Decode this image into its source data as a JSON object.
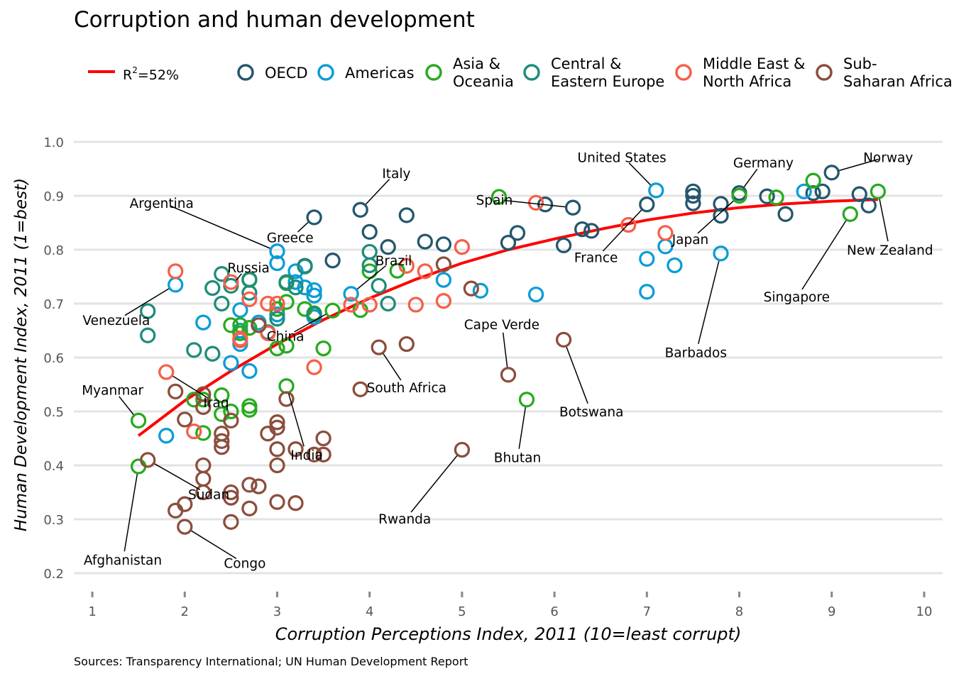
{
  "chart_data": {
    "type": "scatter",
    "title": "Corruption and human development",
    "xlabel": "Corruption Perceptions Index, 2011 (10=least corrupt)",
    "ylabel": "Human Development Index, 2011 (1=best)",
    "source": "Sources: Transparency International; UN Human Development Report",
    "xlim": [
      0.8,
      10.2
    ],
    "ylim": [
      0.2,
      1.0
    ],
    "x_ticks": [
      1,
      2,
      3,
      4,
      5,
      6,
      7,
      8,
      9,
      10
    ],
    "y_ticks": [
      "0.2",
      "0.3",
      "0.4",
      "0.5",
      "0.6",
      "0.7",
      "0.8",
      "0.9",
      "1.0"
    ],
    "grid": "horizontal",
    "legend_position": "top",
    "trend": {
      "label_prefix": "R",
      "label_sup": "2",
      "label_suffix": "=52%",
      "color": "#ff0000",
      "points": [
        [
          1.5,
          0.455
        ],
        [
          2,
          0.52
        ],
        [
          2.5,
          0.575
        ],
        [
          3,
          0.625
        ],
        [
          3.5,
          0.67
        ],
        [
          4,
          0.71
        ],
        [
          4.5,
          0.745
        ],
        [
          5,
          0.775
        ],
        [
          5.5,
          0.8
        ],
        [
          6,
          0.82
        ],
        [
          6.5,
          0.838
        ],
        [
          7,
          0.855
        ],
        [
          7.5,
          0.868
        ],
        [
          8,
          0.878
        ],
        [
          8.5,
          0.885
        ],
        [
          9,
          0.89
        ],
        [
          9.5,
          0.893
        ]
      ]
    },
    "series": [
      {
        "name": "OECD",
        "color": "#24576d",
        "points": [
          [
            3.4,
            0.86
          ],
          [
            3.3,
            0.77
          ],
          [
            3.6,
            0.78
          ],
          [
            3.9,
            0.874
          ],
          [
            4.0,
            0.833
          ],
          [
            4.2,
            0.805
          ],
          [
            4.4,
            0.864
          ],
          [
            4.6,
            0.815
          ],
          [
            4.8,
            0.81
          ],
          [
            5.5,
            0.813
          ],
          [
            5.6,
            0.831
          ],
          [
            5.9,
            0.884
          ],
          [
            6.1,
            0.808
          ],
          [
            6.2,
            0.878
          ],
          [
            6.3,
            0.838
          ],
          [
            6.4,
            0.835
          ],
          [
            7.0,
            0.884
          ],
          [
            7.5,
            0.9
          ],
          [
            7.5,
            0.886
          ],
          [
            7.8,
            0.885
          ],
          [
            7.8,
            0.863
          ],
          [
            8.0,
            0.905
          ],
          [
            8.3,
            0.899
          ],
          [
            8.5,
            0.866
          ],
          [
            8.8,
            0.905
          ],
          [
            8.9,
            0.908
          ],
          [
            9.0,
            0.943
          ],
          [
            9.3,
            0.903
          ],
          [
            9.4,
            0.882
          ],
          [
            7.5,
            0.908
          ]
        ]
      },
      {
        "name": "Americas",
        "color": "#099dd7",
        "points": [
          [
            1.9,
            0.735
          ],
          [
            2.2,
            0.665
          ],
          [
            2.5,
            0.59
          ],
          [
            2.6,
            0.688
          ],
          [
            2.6,
            0.625
          ],
          [
            2.7,
            0.575
          ],
          [
            2.8,
            0.665
          ],
          [
            3.0,
            0.797
          ],
          [
            3.0,
            0.775
          ],
          [
            3.0,
            0.68
          ],
          [
            3.2,
            0.76
          ],
          [
            3.2,
            0.74
          ],
          [
            3.3,
            0.73
          ],
          [
            3.4,
            0.715
          ],
          [
            3.4,
            0.725
          ],
          [
            3.4,
            0.675
          ],
          [
            2.6,
            0.65
          ],
          [
            1.8,
            0.455
          ],
          [
            3.8,
            0.718
          ],
          [
            4.8,
            0.744
          ],
          [
            5.2,
            0.724
          ],
          [
            5.8,
            0.717
          ],
          [
            7.0,
            0.783
          ],
          [
            7.0,
            0.722
          ],
          [
            7.1,
            0.91
          ],
          [
            7.2,
            0.806
          ],
          [
            7.3,
            0.771
          ],
          [
            7.8,
            0.793
          ],
          [
            8.7,
            0.908
          ]
        ]
      },
      {
        "name": "Asia & Oceania",
        "color": "#28aa1f",
        "points": [
          [
            1.5,
            0.483
          ],
          [
            1.5,
            0.398
          ],
          [
            2.1,
            0.522
          ],
          [
            2.2,
            0.522
          ],
          [
            2.2,
            0.46
          ],
          [
            2.4,
            0.495
          ],
          [
            2.4,
            0.53
          ],
          [
            2.5,
            0.66
          ],
          [
            2.5,
            0.5
          ],
          [
            2.6,
            0.645
          ],
          [
            2.7,
            0.51
          ],
          [
            2.7,
            0.503
          ],
          [
            2.7,
            0.655
          ],
          [
            2.7,
            0.744
          ],
          [
            3.0,
            0.617
          ],
          [
            3.1,
            0.738
          ],
          [
            3.1,
            0.703
          ],
          [
            3.1,
            0.622
          ],
          [
            3.1,
            0.547
          ],
          [
            3.3,
            0.69
          ],
          [
            3.4,
            0.682
          ],
          [
            3.5,
            0.617
          ],
          [
            3.6,
            0.687
          ],
          [
            3.9,
            0.688
          ],
          [
            4.0,
            0.76
          ],
          [
            4.3,
            0.761
          ],
          [
            5.4,
            0.898
          ],
          [
            5.7,
            0.522
          ],
          [
            8.0,
            0.9
          ],
          [
            8.4,
            0.897
          ],
          [
            8.8,
            0.928
          ],
          [
            9.2,
            0.866
          ],
          [
            9.5,
            0.908
          ],
          [
            2.6,
            0.66
          ],
          [
            3.0,
            0.69
          ]
        ]
      },
      {
        "name": "Central & Eastern Europe",
        "color": "#1f8c7b",
        "points": [
          [
            1.6,
            0.686
          ],
          [
            1.6,
            0.641
          ],
          [
            2.1,
            0.614
          ],
          [
            2.3,
            0.607
          ],
          [
            2.3,
            0.729
          ],
          [
            2.4,
            0.755
          ],
          [
            2.4,
            0.7
          ],
          [
            2.5,
            0.733
          ],
          [
            2.7,
            0.745
          ],
          [
            2.7,
            0.72
          ],
          [
            2.9,
            0.647
          ],
          [
            3.0,
            0.672
          ],
          [
            3.1,
            0.74
          ],
          [
            3.2,
            0.73
          ],
          [
            3.3,
            0.769
          ],
          [
            4.0,
            0.796
          ],
          [
            4.0,
            0.771
          ],
          [
            4.1,
            0.733
          ],
          [
            4.2,
            0.7
          ],
          [
            3.4,
            0.68
          ]
        ]
      },
      {
        "name": "Middle East & North Africa",
        "color": "#f65f4a",
        "points": [
          [
            1.8,
            0.573
          ],
          [
            1.9,
            0.76
          ],
          [
            2.1,
            0.463
          ],
          [
            2.5,
            0.74
          ],
          [
            2.6,
            0.635
          ],
          [
            2.6,
            0.632
          ],
          [
            2.7,
            0.708
          ],
          [
            2.9,
            0.7
          ],
          [
            2.9,
            0.645
          ],
          [
            3.4,
            0.582
          ],
          [
            3.8,
            0.698
          ],
          [
            4.0,
            0.698
          ],
          [
            4.4,
            0.77
          ],
          [
            4.5,
            0.698
          ],
          [
            4.6,
            0.76
          ],
          [
            4.8,
            0.705
          ],
          [
            5.0,
            0.805
          ],
          [
            5.8,
            0.887
          ],
          [
            6.8,
            0.846
          ],
          [
            7.2,
            0.831
          ],
          [
            3.0,
            0.7
          ]
        ]
      },
      {
        "name": "Sub-Saharan Africa",
        "color": "#8b4e3d",
        "points": [
          [
            1.6,
            0.41
          ],
          [
            1.9,
            0.537
          ],
          [
            2.0,
            0.485
          ],
          [
            1.9,
            0.316
          ],
          [
            2.0,
            0.328
          ],
          [
            2.0,
            0.286
          ],
          [
            2.2,
            0.35
          ],
          [
            2.2,
            0.4
          ],
          [
            2.2,
            0.375
          ],
          [
            2.2,
            0.508
          ],
          [
            2.2,
            0.532
          ],
          [
            2.4,
            0.459
          ],
          [
            2.4,
            0.445
          ],
          [
            2.4,
            0.434
          ],
          [
            2.5,
            0.35
          ],
          [
            2.5,
            0.34
          ],
          [
            2.5,
            0.295
          ],
          [
            2.5,
            0.483
          ],
          [
            2.7,
            0.32
          ],
          [
            2.7,
            0.364
          ],
          [
            2.8,
            0.361
          ],
          [
            2.9,
            0.459
          ],
          [
            3.0,
            0.48
          ],
          [
            3.0,
            0.47
          ],
          [
            3.0,
            0.43
          ],
          [
            3.0,
            0.4
          ],
          [
            3.0,
            0.332
          ],
          [
            3.1,
            0.523
          ],
          [
            3.2,
            0.43
          ],
          [
            3.2,
            0.33
          ],
          [
            3.4,
            0.42
          ],
          [
            3.5,
            0.45
          ],
          [
            3.5,
            0.42
          ],
          [
            3.9,
            0.541
          ],
          [
            4.1,
            0.619
          ],
          [
            4.4,
            0.625
          ],
          [
            4.8,
            0.773
          ],
          [
            5.0,
            0.429
          ],
          [
            5.1,
            0.728
          ],
          [
            5.5,
            0.568
          ],
          [
            6.1,
            0.633
          ],
          [
            2.8,
            0.66
          ]
        ]
      }
    ],
    "annotations": [
      {
        "label": "Argentina",
        "x": 3.0,
        "y": 0.797,
        "text_x": 1.75,
        "text_y": 0.887
      },
      {
        "label": "Greece",
        "x": 3.4,
        "y": 0.86,
        "text_x": 3.14,
        "text_y": 0.823
      },
      {
        "label": "Italy",
        "x": 3.9,
        "y": 0.874,
        "text_x": 4.29,
        "text_y": 0.942
      },
      {
        "label": "Russia",
        "x": 2.5,
        "y": 0.733,
        "text_x": 2.69,
        "text_y": 0.767
      },
      {
        "label": "Brazil",
        "x": 3.8,
        "y": 0.718,
        "text_x": 4.26,
        "text_y": 0.78
      },
      {
        "label": "Venezuela",
        "x": 1.9,
        "y": 0.735,
        "text_x": 1.26,
        "text_y": 0.67
      },
      {
        "label": "China",
        "x": 3.6,
        "y": 0.687,
        "text_x": 3.09,
        "text_y": 0.64
      },
      {
        "label": "Myanmar",
        "x": 1.5,
        "y": 0.483,
        "text_x": 1.22,
        "text_y": 0.54
      },
      {
        "label": "Iraq",
        "x": 1.8,
        "y": 0.573,
        "text_x": 2.34,
        "text_y": 0.517
      },
      {
        "label": "India",
        "x": 3.1,
        "y": 0.547,
        "text_x": 3.32,
        "text_y": 0.42
      },
      {
        "label": "Sudan",
        "x": 1.6,
        "y": 0.41,
        "text_x": 2.26,
        "text_y": 0.347
      },
      {
        "label": "Afghanistan",
        "x": 1.5,
        "y": 0.398,
        "text_x": 1.33,
        "text_y": 0.225
      },
      {
        "label": "Congo",
        "x": 2.0,
        "y": 0.286,
        "text_x": 2.65,
        "text_y": 0.219
      },
      {
        "label": "South Africa",
        "x": 4.1,
        "y": 0.619,
        "text_x": 4.4,
        "text_y": 0.545
      },
      {
        "label": "Rwanda",
        "x": 5.0,
        "y": 0.429,
        "text_x": 4.38,
        "text_y": 0.301
      },
      {
        "label": "Cape Verde",
        "x": 5.5,
        "y": 0.568,
        "text_x": 5.43,
        "text_y": 0.662
      },
      {
        "label": "Bhutan",
        "x": 5.7,
        "y": 0.522,
        "text_x": 5.6,
        "text_y": 0.415
      },
      {
        "label": "Botswana",
        "x": 6.1,
        "y": 0.633,
        "text_x": 6.4,
        "text_y": 0.5
      },
      {
        "label": "Spain",
        "x": 6.2,
        "y": 0.878,
        "text_x": 5.35,
        "text_y": 0.893
      },
      {
        "label": "United States",
        "x": 7.1,
        "y": 0.91,
        "text_x": 6.73,
        "text_y": 0.972
      },
      {
        "label": "France",
        "x": 7.0,
        "y": 0.884,
        "text_x": 6.45,
        "text_y": 0.786
      },
      {
        "label": "Japan",
        "x": 8.0,
        "y": 0.9,
        "text_x": 7.47,
        "text_y": 0.82
      },
      {
        "label": "Germany",
        "x": 8.0,
        "y": 0.905,
        "text_x": 8.26,
        "text_y": 0.962
      },
      {
        "label": "Norway",
        "x": 9.0,
        "y": 0.943,
        "text_x": 9.61,
        "text_y": 0.972
      },
      {
        "label": "New Zealand",
        "x": 9.5,
        "y": 0.908,
        "text_x": 9.63,
        "text_y": 0.8
      },
      {
        "label": "Singapore",
        "x": 9.2,
        "y": 0.866,
        "text_x": 8.62,
        "text_y": 0.713
      },
      {
        "label": "Barbados",
        "x": 7.8,
        "y": 0.793,
        "text_x": 7.53,
        "text_y": 0.61
      }
    ]
  }
}
